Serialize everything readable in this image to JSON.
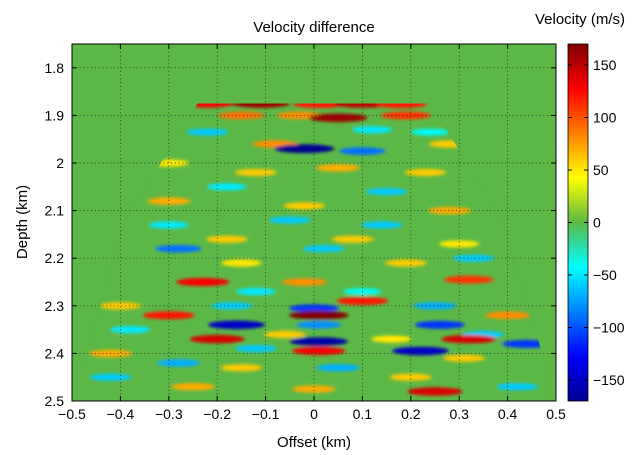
{
  "chart_data": {
    "type": "heatmap",
    "title": "Velocity difference",
    "xlabel": "Offset (km)",
    "ylabel": "Depth (km)",
    "xlim": [
      -0.5,
      0.5
    ],
    "ylim": [
      2.5,
      1.75
    ],
    "y_direction": "downward (depth increases)",
    "x_ticks": [
      "−0.5",
      "−0.4",
      "−0.3",
      "−0.2",
      "−0.1",
      "0",
      "0.1",
      "0.2",
      "0.3",
      "0.4",
      "0.5"
    ],
    "y_ticks": [
      "1.8",
      "1.9",
      "2",
      "2.1",
      "2.2",
      "2.3",
      "2.4",
      "2.5"
    ],
    "grid": true,
    "colormap": "jet",
    "colorbar": {
      "title": "Velocity (m/s)",
      "range": [
        -170,
        170
      ],
      "ticks": [
        "150",
        "100",
        "50",
        "0",
        "−50",
        "−100",
        "−150"
      ]
    },
    "background_value": 0,
    "background_color": "#5cb846",
    "data_region_polygon": [
      {
        "x": -0.24,
        "y": 1.875
      },
      {
        "x": 0.24,
        "y": 1.875
      },
      {
        "x": 0.39,
        "y": 2.12
      },
      {
        "x": 0.48,
        "y": 2.43
      },
      {
        "x": 0.48,
        "y": 2.5
      },
      {
        "x": -0.48,
        "y": 2.5
      },
      {
        "x": -0.48,
        "y": 2.43
      },
      {
        "x": -0.39,
        "y": 2.12
      }
    ],
    "anomalies": [
      {
        "x": -0.22,
        "y": 1.875,
        "value": 130
      },
      {
        "x": -0.11,
        "y": 1.875,
        "value": 160
      },
      {
        "x": 0.01,
        "y": 1.876,
        "value": 120
      },
      {
        "x": 0.1,
        "y": 1.875,
        "value": 150
      },
      {
        "x": 0.18,
        "y": 1.876,
        "value": 120
      },
      {
        "x": -0.15,
        "y": 1.9,
        "value": 90
      },
      {
        "x": -0.03,
        "y": 1.9,
        "value": 80
      },
      {
        "x": 0.05,
        "y": 1.905,
        "value": 160
      },
      {
        "x": 0.19,
        "y": 1.9,
        "value": 110
      },
      {
        "x": -0.22,
        "y": 1.935,
        "value": -60
      },
      {
        "x": 0.12,
        "y": 1.93,
        "value": -50
      },
      {
        "x": 0.24,
        "y": 1.935,
        "value": -40
      },
      {
        "x": -0.08,
        "y": 1.96,
        "value": 80
      },
      {
        "x": -0.02,
        "y": 1.97,
        "value": -170
      },
      {
        "x": 0.1,
        "y": 1.975,
        "value": -90
      },
      {
        "x": 0.28,
        "y": 1.96,
        "value": 60
      },
      {
        "x": -0.3,
        "y": 2.0,
        "value": 50
      },
      {
        "x": -0.12,
        "y": 2.02,
        "value": 60
      },
      {
        "x": 0.05,
        "y": 2.01,
        "value": 70
      },
      {
        "x": 0.23,
        "y": 2.02,
        "value": 60
      },
      {
        "x": -0.18,
        "y": 2.05,
        "value": -50
      },
      {
        "x": 0.15,
        "y": 2.06,
        "value": -60
      },
      {
        "x": -0.3,
        "y": 2.08,
        "value": 70
      },
      {
        "x": -0.02,
        "y": 2.09,
        "value": 60
      },
      {
        "x": 0.28,
        "y": 2.1,
        "value": 70
      },
      {
        "x": -0.3,
        "y": 2.13,
        "value": -50
      },
      {
        "x": -0.05,
        "y": 2.12,
        "value": -60
      },
      {
        "x": 0.14,
        "y": 2.13,
        "value": -60
      },
      {
        "x": -0.18,
        "y": 2.16,
        "value": 60
      },
      {
        "x": 0.08,
        "y": 2.16,
        "value": 60
      },
      {
        "x": 0.3,
        "y": 2.17,
        "value": 50
      },
      {
        "x": -0.28,
        "y": 2.18,
        "value": -90
      },
      {
        "x": 0.02,
        "y": 2.18,
        "value": -60
      },
      {
        "x": 0.33,
        "y": 2.2,
        "value": -60
      },
      {
        "x": -0.15,
        "y": 2.21,
        "value": 50
      },
      {
        "x": 0.19,
        "y": 2.21,
        "value": 60
      },
      {
        "x": -0.23,
        "y": 2.25,
        "value": 130
      },
      {
        "x": -0.02,
        "y": 2.25,
        "value": 80
      },
      {
        "x": 0.32,
        "y": 2.245,
        "value": 110
      },
      {
        "x": -0.12,
        "y": 2.27,
        "value": -50
      },
      {
        "x": 0.1,
        "y": 2.27,
        "value": -40
      },
      {
        "x": 0.1,
        "y": 2.29,
        "value": 120
      },
      {
        "x": -0.4,
        "y": 2.3,
        "value": 60
      },
      {
        "x": -0.17,
        "y": 2.3,
        "value": -60
      },
      {
        "x": 0.0,
        "y": 2.305,
        "value": -110
      },
      {
        "x": 0.25,
        "y": 2.3,
        "value": -70
      },
      {
        "x": -0.3,
        "y": 2.32,
        "value": 120
      },
      {
        "x": 0.01,
        "y": 2.32,
        "value": 170
      },
      {
        "x": 0.4,
        "y": 2.32,
        "value": 80
      },
      {
        "x": -0.16,
        "y": 2.34,
        "value": -150
      },
      {
        "x": 0.01,
        "y": 2.34,
        "value": -80
      },
      {
        "x": 0.26,
        "y": 2.34,
        "value": -110
      },
      {
        "x": -0.38,
        "y": 2.35,
        "value": -50
      },
      {
        "x": -0.06,
        "y": 2.36,
        "value": 60
      },
      {
        "x": 0.35,
        "y": 2.36,
        "value": -60
      },
      {
        "x": -0.2,
        "y": 2.37,
        "value": 140
      },
      {
        "x": 0.32,
        "y": 2.37,
        "value": 140
      },
      {
        "x": 0.01,
        "y": 2.375,
        "value": -160
      },
      {
        "x": 0.16,
        "y": 2.37,
        "value": 50
      },
      {
        "x": 0.44,
        "y": 2.38,
        "value": -110
      },
      {
        "x": -0.12,
        "y": 2.39,
        "value": -60
      },
      {
        "x": 0.22,
        "y": 2.395,
        "value": -150
      },
      {
        "x": -0.42,
        "y": 2.4,
        "value": 70
      },
      {
        "x": 0.01,
        "y": 2.395,
        "value": 130
      },
      {
        "x": -0.28,
        "y": 2.42,
        "value": -70
      },
      {
        "x": 0.31,
        "y": 2.41,
        "value": 60
      },
      {
        "x": -0.15,
        "y": 2.43,
        "value": 60
      },
      {
        "x": 0.05,
        "y": 2.43,
        "value": -70
      },
      {
        "x": -0.42,
        "y": 2.45,
        "value": -60
      },
      {
        "x": 0.2,
        "y": 2.45,
        "value": 60
      },
      {
        "x": -0.25,
        "y": 2.47,
        "value": 70
      },
      {
        "x": 0.0,
        "y": 2.475,
        "value": 70
      },
      {
        "x": 0.25,
        "y": 2.48,
        "value": 140
      },
      {
        "x": 0.42,
        "y": 2.47,
        "value": -60
      }
    ]
  }
}
